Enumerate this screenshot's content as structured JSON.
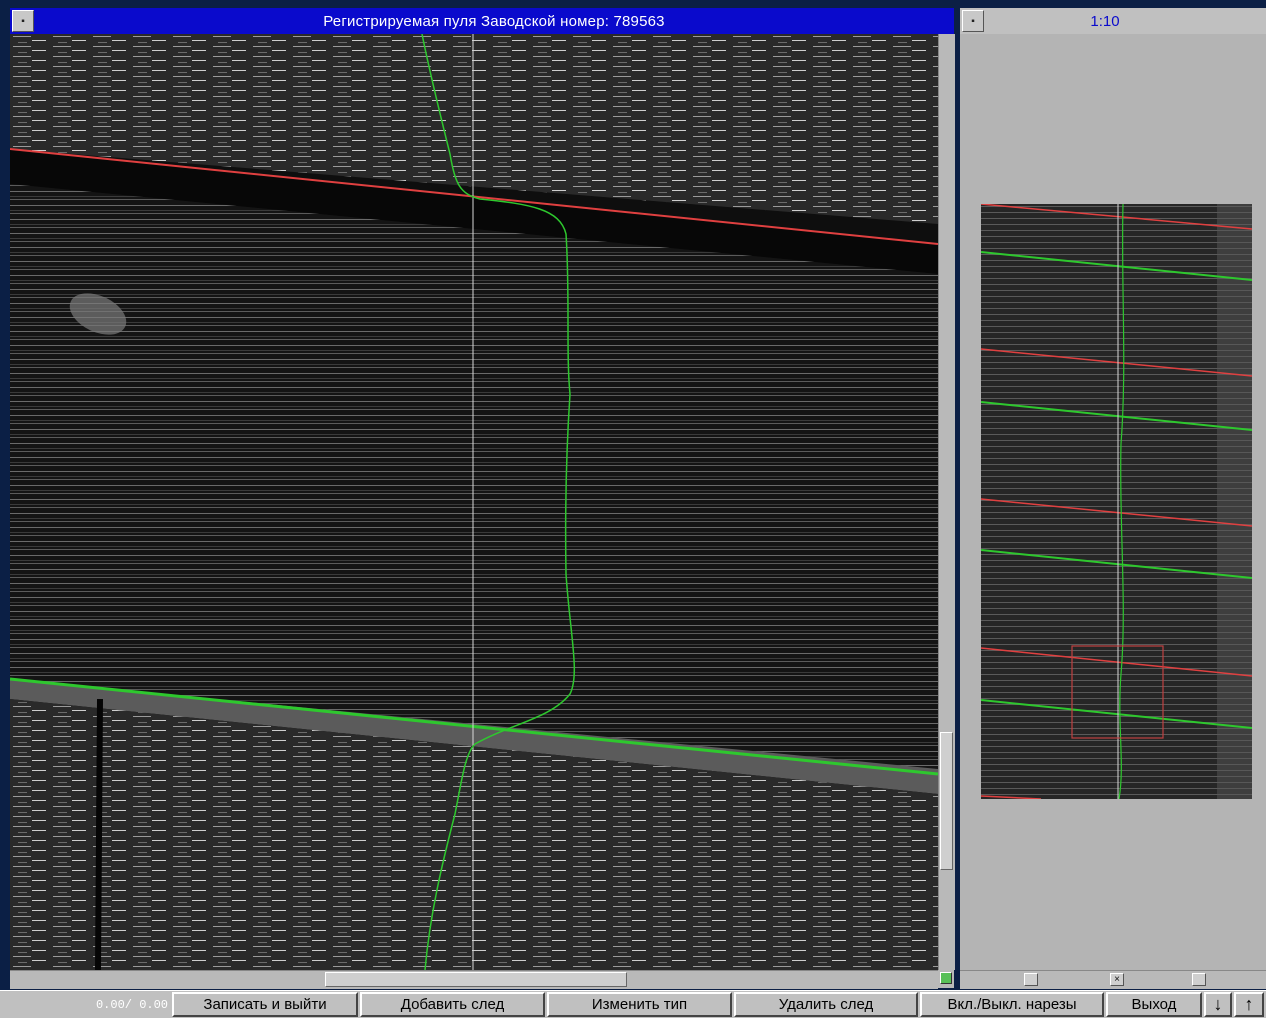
{
  "main_window": {
    "title": "Регистрируемая пуля   Заводской номер: 789563",
    "menu_glyph": "▪"
  },
  "overview_window": {
    "title": "1:10",
    "menu_glyph": "▪"
  },
  "overview_scrollbar": {
    "close_glyph": "×"
  },
  "toolbar": {
    "coordinates": "0.00/  0.00",
    "buttons": {
      "save_exit": "Записать и выйти",
      "add_trace": "Добавить след",
      "change_type": "Изменить тип",
      "delete_trace": "Удалить след",
      "toggle_grooves": "Вкл./Выкл. нарезы",
      "exit": "Выход"
    },
    "arrow_down": "↓",
    "arrow_up": "↑"
  },
  "colors": {
    "title_bar": "#0a0acc",
    "red_line": "#e04040",
    "green_line": "#2ec82e",
    "vertical_line": "#d8d8d8",
    "selection_box": "#c04040"
  }
}
